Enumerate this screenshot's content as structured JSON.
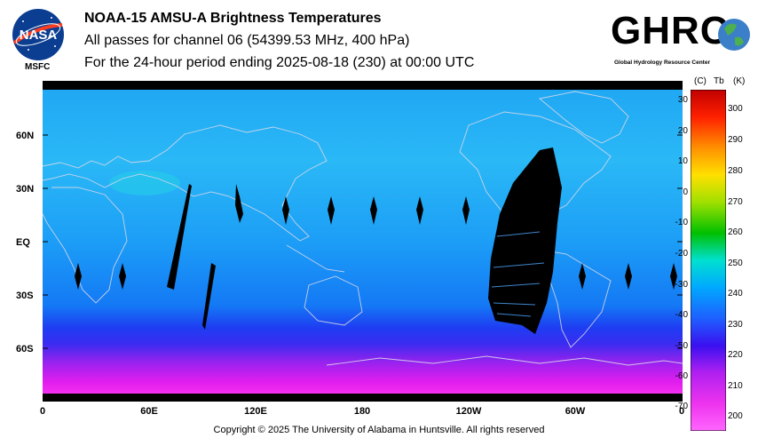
{
  "header": {
    "line1": "NOAA-15 AMSU-A Brightness Temperatures",
    "line2": "All passes for channel 06 (54399.53 MHz, 400 hPa)",
    "line3": "For the 24-hour period ending 2025-08-18 (230) at 00:00 UTC"
  },
  "logos": {
    "nasa": "NASA",
    "msfc": "MSFC",
    "ghrc": "GHRC",
    "ghrc_subtitle": "Global Hydrology Resource Center"
  },
  "map": {
    "lat_labels": [
      "60N",
      "30N",
      "EQ",
      "30S",
      "60S"
    ],
    "lon_labels": [
      "0",
      "60E",
      "120E",
      "180",
      "120W",
      "60W",
      "0"
    ]
  },
  "colorbar": {
    "unit_c": "(C)",
    "unit_tb": "Tb",
    "unit_k": "(K)",
    "celsius_ticks": [
      "30",
      "20",
      "10",
      "0",
      "-10",
      "-20",
      "-30",
      "-40",
      "-50",
      "-60",
      "-70"
    ],
    "kelvin_ticks": [
      "300",
      "290",
      "280",
      "270",
      "260",
      "250",
      "240",
      "230",
      "220",
      "210",
      "200"
    ],
    "colors": [
      "#ff66ff",
      "#cc33ff",
      "#8a2be2",
      "#0000ff",
      "#2060ff",
      "#00a0ff",
      "#00e0e0",
      "#00c000",
      "#e0e000",
      "#ff8000",
      "#ff0000",
      "#c00000"
    ]
  },
  "footer": {
    "copyright": "Copyright © 2025 The University of Alabama in Huntsville.  All rights reserved"
  }
}
